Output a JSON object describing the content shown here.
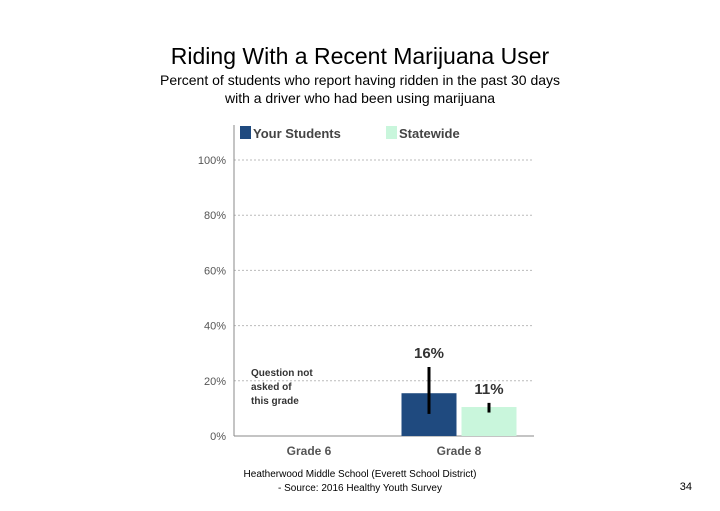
{
  "title": "Riding With a Recent Marijuana User",
  "subtitle_lines": [
    "Percent of students who report having ridden in the past 30 days",
    "with a driver who had been using marijuana"
  ],
  "footer_lines": [
    "Heatherwood Middle School (Everett School District)",
    "- Source: 2016 Healthy Youth Survey"
  ],
  "page_number": "34",
  "colors": {
    "your_students": "#1f4a7f",
    "statewide": "#c9f6dc",
    "grid": "#bbbbbb",
    "axis": "#888888",
    "error_bar": "#000000"
  },
  "chart_data": {
    "type": "bar",
    "categories": [
      "Grade 6",
      "Grade 8"
    ],
    "ylim": [
      0,
      100
    ],
    "yticks": [
      0,
      20,
      40,
      60,
      80,
      100
    ],
    "ytick_labels": [
      "0%",
      "20%",
      "40%",
      "60%",
      "80%",
      "100%"
    ],
    "grid": true,
    "legend_position": "top",
    "series": [
      {
        "name": "Your Students",
        "values": [
          null,
          15.5
        ],
        "labels": [
          "",
          "16%"
        ],
        "error": [
          null,
          [
            8,
            25
          ]
        ]
      },
      {
        "name": "Statewide",
        "values": [
          null,
          10.5
        ],
        "labels": [
          "",
          "11%"
        ],
        "error": [
          null,
          [
            8.5,
            12
          ]
        ]
      }
    ],
    "annotations": [
      {
        "category": "Grade 6",
        "lines": [
          "Question not",
          "asked of",
          "this grade"
        ]
      }
    ]
  }
}
